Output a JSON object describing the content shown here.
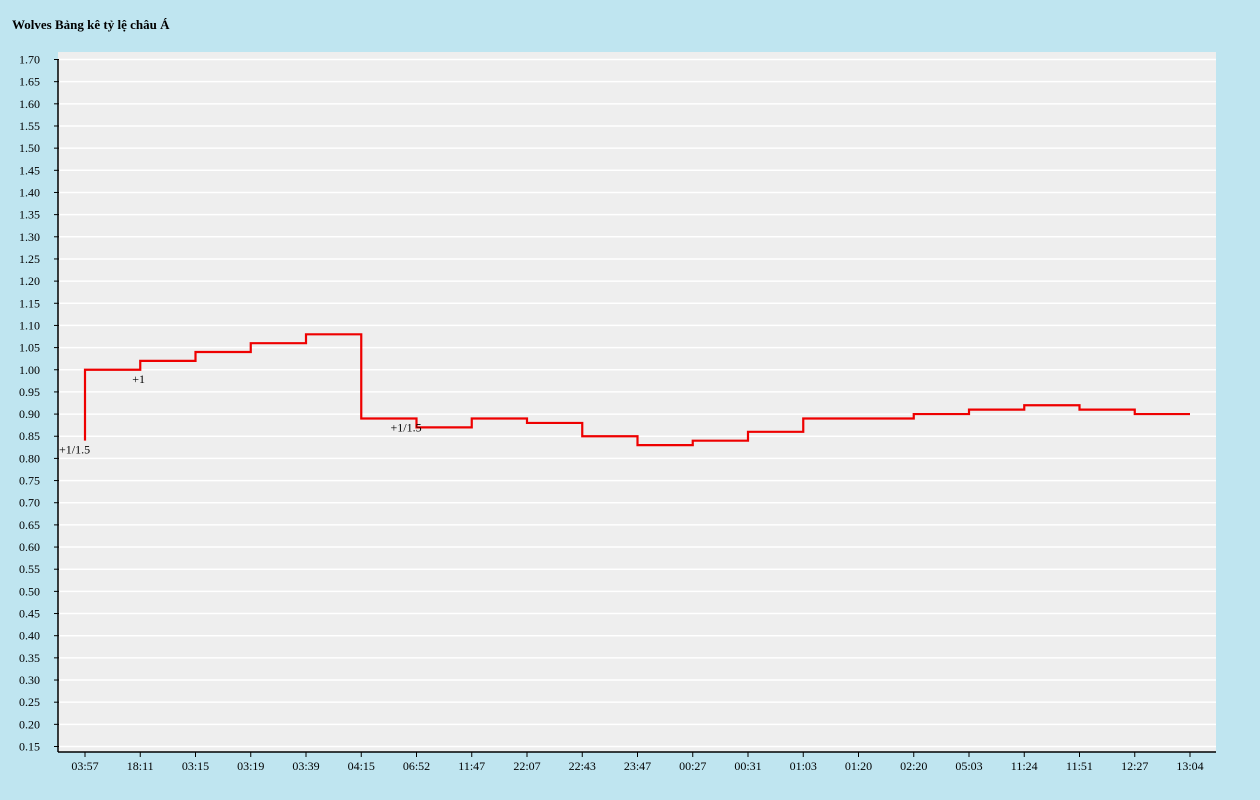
{
  "chart_data": {
    "type": "line",
    "step": true,
    "title": "Wolves Bảng kê tỷ lệ châu Á",
    "xlabel": "",
    "ylabel": "",
    "ylim": [
      0.15,
      1.7
    ],
    "y_tick_step": 0.05,
    "grid": true,
    "categories": [
      "03:57",
      "18:11",
      "03:15",
      "03:19",
      "03:39",
      "04:15",
      "06:52",
      "11:47",
      "22:07",
      "22:43",
      "23:47",
      "00:27",
      "00:31",
      "01:03",
      "01:20",
      "02:20",
      "05:03",
      "11:24",
      "11:51",
      "12:27",
      "13:04"
    ],
    "values": [
      1.0,
      1.02,
      1.04,
      1.06,
      1.08,
      0.89,
      0.87,
      0.89,
      0.88,
      0.85,
      0.83,
      0.84,
      0.86,
      0.89,
      0.89,
      0.9,
      0.91,
      0.92,
      0.91,
      0.9,
      0.9
    ],
    "start_value": 0.84,
    "annotations": [
      {
        "text": "+1/1.5",
        "category_index": 0,
        "value": 0.84
      },
      {
        "text": "+1",
        "category_index": 1,
        "value": 1.0
      },
      {
        "text": "+1/1.5",
        "category_index": 6,
        "value": 0.89
      }
    ]
  },
  "colors": {
    "background": "#bfe5f0",
    "plot_area": "#eeeeee",
    "line": "#ee0000",
    "axis": "#000000",
    "grid": "#ffffff"
  }
}
